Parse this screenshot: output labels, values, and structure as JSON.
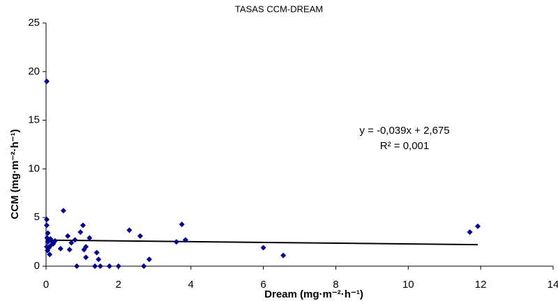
{
  "chart_data": {
    "type": "scatter",
    "title": "TASAS CCM-DREAM",
    "x_label": "Dream (mg·m⁻²·h⁻¹)",
    "y_label": "CCM (mg·m⁻²·h⁻¹)",
    "x": [
      0.02,
      0.02,
      0.02,
      0.05,
      0.03,
      0.05,
      0.02,
      0.04,
      0.08,
      0.1,
      0.12,
      0.15,
      0.2,
      0.25,
      0.12,
      0.4,
      0.48,
      0.6,
      0.65,
      0.7,
      0.8,
      0.85,
      0.95,
      1.02,
      1.05,
      1.1,
      1.1,
      1.2,
      1.35,
      1.4,
      1.45,
      1.5,
      1.75,
      2.0,
      2.3,
      2.6,
      2.7,
      2.85,
      3.6,
      3.75,
      3.85,
      6.0,
      6.55,
      11.7,
      11.92
    ],
    "series": [
      {
        "color": "#00008b",
        "values": [
          19.0,
          4.8,
          4.2,
          3.4,
          2.9,
          2.5,
          2.0,
          1.6,
          1.9,
          1.2,
          2.8,
          2.6,
          2.3,
          2.6,
          2.1,
          1.8,
          5.7,
          3.1,
          1.7,
          2.4,
          2.7,
          0.0,
          3.5,
          4.2,
          1.7,
          2.0,
          0.9,
          2.9,
          0.0,
          1.4,
          0.7,
          0.0,
          0.0,
          0.0,
          3.7,
          3.1,
          0.0,
          0.7,
          2.5,
          4.3,
          2.7,
          1.9,
          1.1,
          3.5,
          4.1
        ]
      }
    ],
    "trendline": {
      "x": [
        0,
        11.92
      ],
      "values": [
        2.675,
        2.21
      ],
      "color": "#000000"
    },
    "annotations": [
      "y = -0,039x + 2,675",
      "R² = 0,001"
    ],
    "xlim": [
      0,
      14
    ],
    "xticks": [
      0,
      2,
      4,
      6,
      8,
      10,
      12,
      14
    ],
    "ylim": [
      0,
      25
    ],
    "yticks": [
      0,
      5,
      10,
      15,
      20,
      25
    ],
    "grid": false
  }
}
